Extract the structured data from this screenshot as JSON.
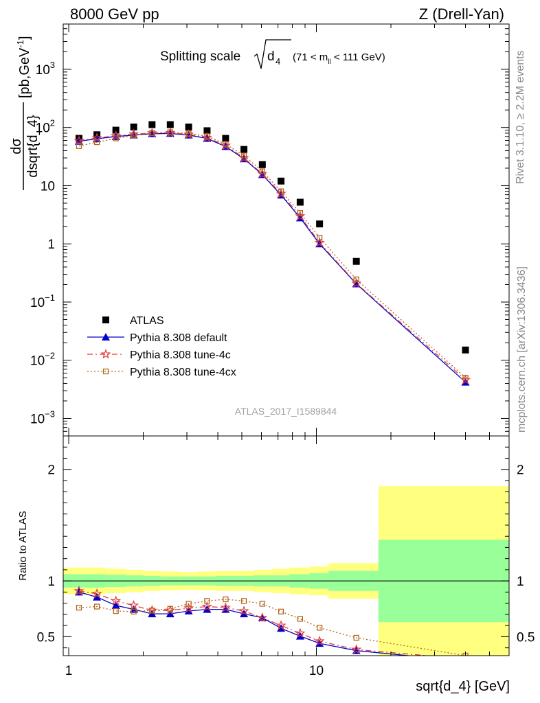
{
  "header": {
    "left": "8000 GeV pp",
    "right": "Z (Drell-Yan)"
  },
  "side_labels": {
    "rivet": "Rivet 3.1.10, ≥ 2.2M events",
    "mcplots": "mcplots.cern.ch [arXiv:1306.3436]"
  },
  "watermark": "ATLAS_2017_I1589844",
  "title": {
    "main": "Splitting scale",
    "sqrt_arg": "d",
    "sqrt_sub": "4",
    "range_pre": "(71 < m",
    "range_sub": "ll",
    "range_post": " < 111 GeV)"
  },
  "colors": {
    "atlas": "#000000",
    "default": "#0000cc",
    "tune4c": "#e23b3b",
    "tune4cx": "#b5651d",
    "band_inner": "#99ff99",
    "band_outer": "#ffff80"
  },
  "chart_data": [
    {
      "type": "scatter",
      "panel": "main",
      "ylabel_num": "dσ",
      "ylabel_den": "dsqrt{d_4}",
      "ylabel_unit": "[pb,GeV",
      "ylabel_unit_sup": "-1",
      "ylabel_unit_end": "]",
      "xscale": "log",
      "yscale": "log",
      "xlim": [
        0.95,
        60
      ],
      "ylim": [
        0.0005,
        6000
      ],
      "y_ticks": [
        {
          "v": 0.001,
          "base": "10",
          "exp": "−3"
        },
        {
          "v": 0.01,
          "base": "10",
          "exp": "−2"
        },
        {
          "v": 0.1,
          "base": "10",
          "exp": "−1"
        },
        {
          "v": 1,
          "base": "1",
          "exp": ""
        },
        {
          "v": 10,
          "base": "10",
          "exp": ""
        },
        {
          "v": 100,
          "base": "10",
          "exp": "2"
        },
        {
          "v": 1000,
          "base": "10",
          "exp": "3"
        }
      ],
      "legend_position": "bottom-left",
      "x": [
        1.1,
        1.3,
        1.55,
        1.83,
        2.17,
        2.57,
        3.05,
        3.62,
        4.3,
        5.1,
        6.05,
        7.2,
        8.6,
        10.3,
        14.5,
        40.0
      ],
      "series": [
        {
          "name": "ATLAS",
          "key": "atlas",
          "marker": "square",
          "values": [
            65,
            75,
            90,
            102,
            112,
            112,
            102,
            88,
            65,
            42,
            23,
            12,
            5.2,
            2.2,
            0.5,
            0.015
          ]
        },
        {
          "name": "Pythia 8.308 default",
          "key": "default",
          "marker": "triangle",
          "dash": "",
          "values": [
            58,
            64,
            70,
            74,
            78,
            79,
            74,
            65,
            47,
            29,
            15.5,
            6.9,
            2.8,
            1.0,
            0.205,
            0.0042
          ]
        },
        {
          "name": "Pythia 8.308 tune-4c",
          "key": "tune4c",
          "marker": "star",
          "dash": "8 4 2 4",
          "values": [
            59,
            66,
            72,
            77,
            80,
            81,
            76,
            67,
            49,
            30,
            16,
            7.3,
            3.0,
            1.05,
            0.21,
            0.0046
          ]
        },
        {
          "name": "Pythia 8.308 tune-4cx",
          "key": "tune4cx",
          "marker": "opensquare",
          "dash": "2 3",
          "values": [
            48,
            56,
            65,
            73,
            80,
            83,
            79,
            71,
            52,
            33,
            17.7,
            8.0,
            3.4,
            1.28,
            0.245,
            0.005
          ]
        }
      ]
    },
    {
      "type": "line",
      "panel": "ratio",
      "ylabel": "Ratio to ATLAS",
      "xlabel": "sqrt{d_4} [GeV]",
      "xscale": "log",
      "xlim": [
        0.95,
        60
      ],
      "ylim": [
        0.33,
        2.3
      ],
      "y_ticks": [
        0.5,
        1,
        2
      ],
      "x_ticks": [
        {
          "v": 1,
          "label": "1"
        },
        {
          "v": 10,
          "label": "10"
        }
      ],
      "reference_line": 1,
      "bands": {
        "edges": [
          0.95,
          1.2,
          1.4,
          1.7,
          2.0,
          2.35,
          2.8,
          3.3,
          3.95,
          4.7,
          5.6,
          6.6,
          7.8,
          9.4,
          11.2,
          17.8,
          60
        ],
        "inner_half": [
          0.06,
          0.06,
          0.055,
          0.05,
          0.045,
          0.04,
          0.04,
          0.04,
          0.045,
          0.045,
          0.05,
          0.05,
          0.06,
          0.07,
          0.09,
          0.37
        ],
        "outer_half": [
          0.12,
          0.12,
          0.11,
          0.1,
          0.09,
          0.085,
          0.08,
          0.085,
          0.09,
          0.09,
          0.1,
          0.11,
          0.12,
          0.13,
          0.16,
          0.85
        ]
      },
      "x": [
        1.1,
        1.3,
        1.55,
        1.83,
        2.17,
        2.57,
        3.05,
        3.62,
        4.3,
        5.1,
        6.05,
        7.2,
        8.6,
        10.3,
        14.5,
        40.0
      ],
      "series": [
        {
          "name": "Pythia 8.308 default",
          "key": "default",
          "values": [
            0.9,
            0.855,
            0.78,
            0.745,
            0.705,
            0.705,
            0.73,
            0.745,
            0.745,
            0.705,
            0.67,
            0.575,
            0.505,
            0.44,
            0.375,
            0.28
          ]
        },
        {
          "name": "Pythia 8.308 tune-4c",
          "key": "tune4c",
          "values": [
            0.91,
            0.885,
            0.82,
            0.78,
            0.735,
            0.735,
            0.755,
            0.77,
            0.76,
            0.73,
            0.67,
            0.6,
            0.53,
            0.46,
            0.385,
            0.3
          ]
        },
        {
          "name": "Pythia 8.308 tune-4cx",
          "key": "tune4cx",
          "values": [
            0.76,
            0.77,
            0.73,
            0.725,
            0.735,
            0.75,
            0.795,
            0.82,
            0.835,
            0.82,
            0.795,
            0.725,
            0.66,
            0.58,
            0.49,
            0.33
          ]
        }
      ]
    }
  ]
}
